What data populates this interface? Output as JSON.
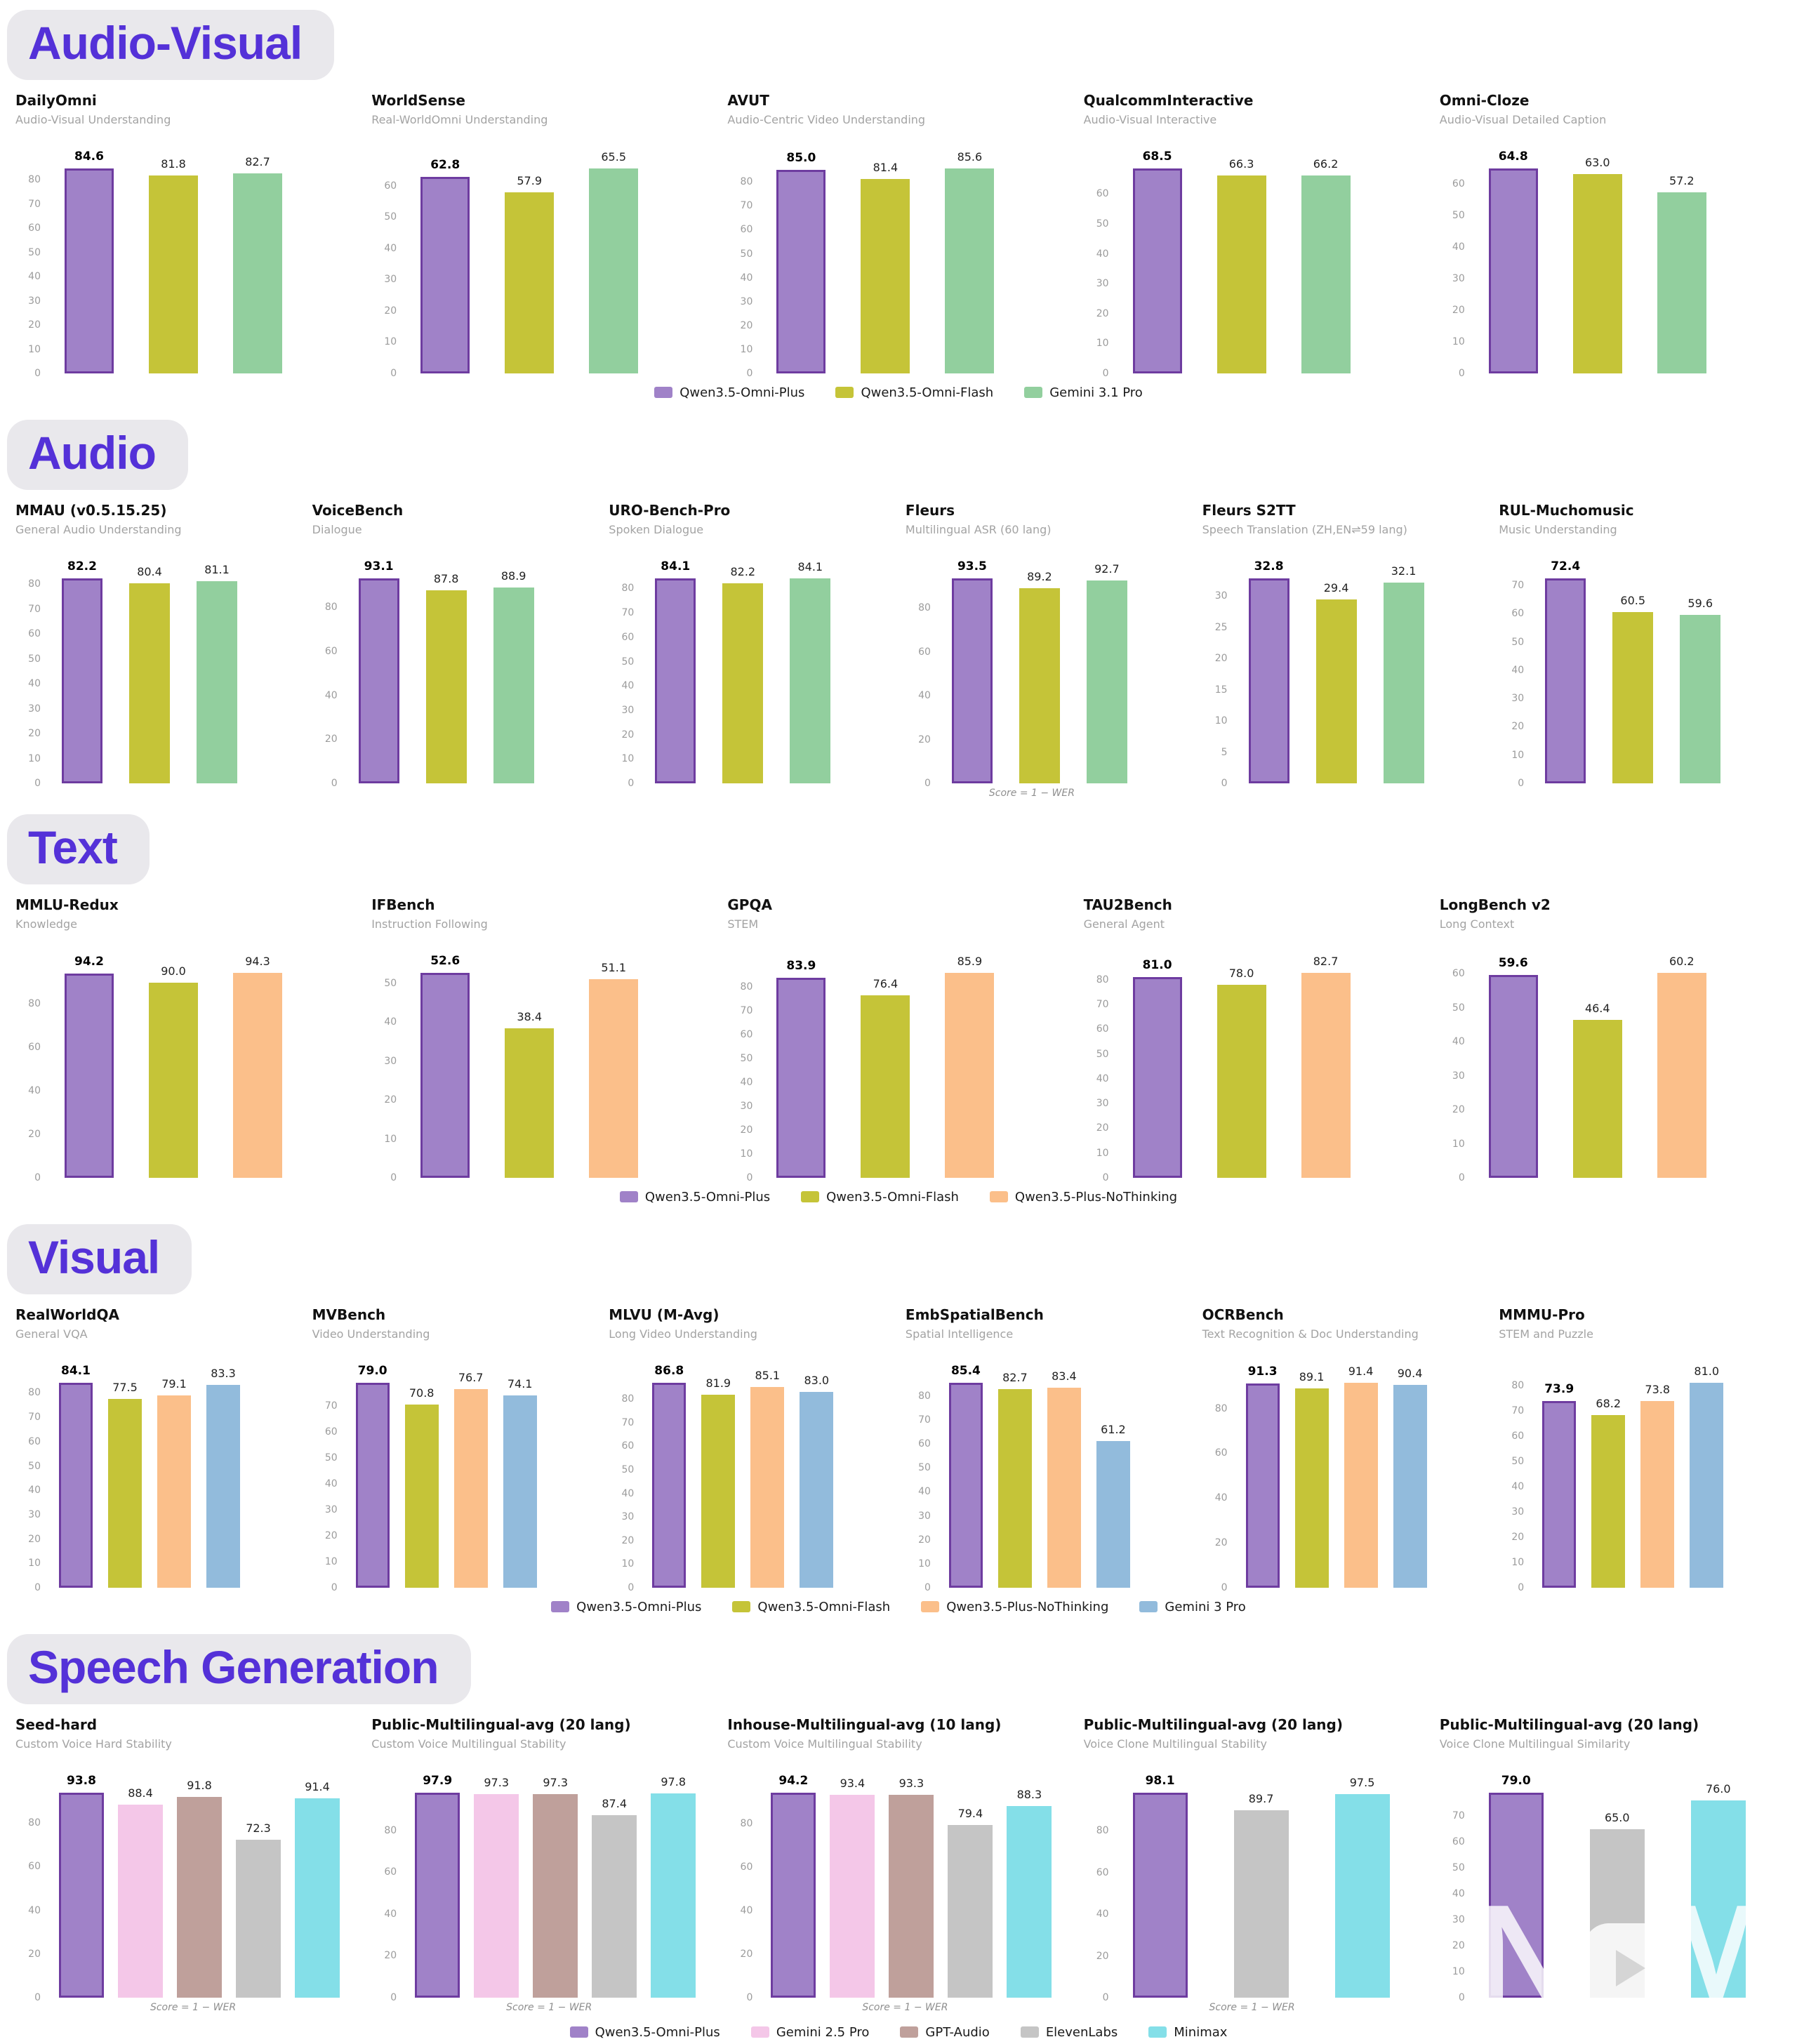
{
  "chart_data": {
    "type": "bar",
    "sections": [
      {
        "title": "Audio-Visual",
        "show_legend": true,
        "series": [
          {
            "name": "Qwen3.5-Omni-Plus",
            "color": "#a082c8",
            "border": "#6e3ca0"
          },
          {
            "name": "Qwen3.5-Omni-Flash",
            "color": "#c5c438"
          },
          {
            "name": "Gemini 3.1 Pro",
            "color": "#92cf9e"
          }
        ],
        "charts": [
          {
            "title": "DailyOmni",
            "subtitle": "Audio-Visual Understanding",
            "tick_max": 80,
            "tick_step": 10,
            "values": [
              "84.6",
              "81.8",
              "82.7"
            ]
          },
          {
            "title": "WorldSense",
            "subtitle": "Real-WorldOmni Understanding",
            "tick_max": 60,
            "tick_step": 10,
            "values": [
              "62.8",
              "57.9",
              "65.5"
            ]
          },
          {
            "title": "AVUT",
            "subtitle": "Audio-Centric Video Understanding",
            "tick_max": 80,
            "tick_step": 10,
            "values": [
              "85.0",
              "81.4",
              "85.6"
            ]
          },
          {
            "title": "QualcommInteractive",
            "subtitle": "Audio-Visual Interactive",
            "tick_max": 60,
            "tick_step": 10,
            "values": [
              "68.5",
              "66.3",
              "66.2"
            ]
          },
          {
            "title": "Omni-Cloze",
            "subtitle": "Audio-Visual Detailed Caption",
            "tick_max": 60,
            "tick_step": 10,
            "values": [
              "64.8",
              "63.0",
              "57.2"
            ]
          }
        ]
      },
      {
        "title": "Audio",
        "show_legend": false,
        "series": [
          {
            "name": "Qwen3.5-Omni-Plus",
            "color": "#a082c8",
            "border": "#6e3ca0"
          },
          {
            "name": "Qwen3.5-Omni-Flash",
            "color": "#c5c438"
          },
          {
            "name": "Gemini 3.1 Pro",
            "color": "#92cf9e"
          }
        ],
        "charts": [
          {
            "title": "MMAU (v0.5.15.25)",
            "subtitle": "General Audio Understanding",
            "tick_max": 80,
            "tick_step": 10,
            "values": [
              "82.2",
              "80.4",
              "81.1"
            ]
          },
          {
            "title": "VoiceBench",
            "subtitle": "Dialogue",
            "tick_max": 80,
            "tick_step": 20,
            "values": [
              "93.1",
              "87.8",
              "88.9"
            ]
          },
          {
            "title": "URO-Bench-Pro",
            "subtitle": "Spoken Dialogue",
            "tick_max": 80,
            "tick_step": 10,
            "values": [
              "84.1",
              "82.2",
              "84.1"
            ]
          },
          {
            "title": "Fleurs",
            "subtitle": "Multilingual ASR (60 lang)",
            "tick_max": 80,
            "tick_step": 20,
            "values": [
              "93.5",
              "89.2",
              "92.7"
            ],
            "score_note": "Score = 1 − WER"
          },
          {
            "title": "Fleurs S2TT",
            "subtitle": "Speech Translation (ZH,EN⇌59 lang)",
            "tick_max": 30,
            "tick_step": 5,
            "values": [
              "32.8",
              "29.4",
              "32.1"
            ]
          },
          {
            "title": "RUL-Muchomusic",
            "subtitle": "Music Understanding",
            "tick_max": 70,
            "tick_step": 10,
            "values": [
              "72.4",
              "60.5",
              "59.6"
            ]
          }
        ]
      },
      {
        "title": "Text",
        "show_legend": true,
        "series": [
          {
            "name": "Qwen3.5-Omni-Plus",
            "color": "#a082c8",
            "border": "#6e3ca0"
          },
          {
            "name": "Qwen3.5-Omni-Flash",
            "color": "#c5c438"
          },
          {
            "name": "Qwen3.5-Plus-NoThinking",
            "color": "#fbbf8a"
          }
        ],
        "charts": [
          {
            "title": "MMLU-Redux",
            "subtitle": "Knowledge",
            "tick_max": 80,
            "tick_step": 20,
            "values": [
              "94.2",
              "90.0",
              "94.3"
            ]
          },
          {
            "title": "IFBench",
            "subtitle": "Instruction Following",
            "tick_max": 50,
            "tick_step": 10,
            "values": [
              "52.6",
              "38.4",
              "51.1"
            ]
          },
          {
            "title": "GPQA",
            "subtitle": "STEM",
            "tick_max": 80,
            "tick_step": 10,
            "values": [
              "83.9",
              "76.4",
              "85.9"
            ]
          },
          {
            "title": "TAU2Bench",
            "subtitle": "General Agent",
            "tick_max": 80,
            "tick_step": 10,
            "values": [
              "81.0",
              "78.0",
              "82.7"
            ]
          },
          {
            "title": "LongBench v2",
            "subtitle": "Long Context",
            "tick_max": 60,
            "tick_step": 10,
            "values": [
              "59.6",
              "46.4",
              "60.2"
            ]
          }
        ]
      },
      {
        "title": "Visual",
        "show_legend": true,
        "series": [
          {
            "name": "Qwen3.5-Omni-Plus",
            "color": "#a082c8",
            "border": "#6e3ca0"
          },
          {
            "name": "Qwen3.5-Omni-Flash",
            "color": "#c5c438"
          },
          {
            "name": "Qwen3.5-Plus-NoThinking",
            "color": "#fbbf8a"
          },
          {
            "name": "Gemini 3 Pro",
            "color": "#92bbdc"
          }
        ],
        "charts": [
          {
            "title": "RealWorldQA",
            "subtitle": "General VQA",
            "tick_max": 80,
            "tick_step": 10,
            "values": [
              "84.1",
              "77.5",
              "79.1",
              "83.3"
            ]
          },
          {
            "title": "MVBench",
            "subtitle": "Video Understanding",
            "tick_max": 70,
            "tick_step": 10,
            "values": [
              "79.0",
              "70.8",
              "76.7",
              "74.1"
            ]
          },
          {
            "title": "MLVU (M-Avg)",
            "subtitle": "Long Video Understanding",
            "tick_max": 80,
            "tick_step": 10,
            "values": [
              "86.8",
              "81.9",
              "85.1",
              "83.0"
            ]
          },
          {
            "title": "EmbSpatialBench",
            "subtitle": "Spatial Intelligence",
            "tick_max": 80,
            "tick_step": 10,
            "values": [
              "85.4",
              "82.7",
              "83.4",
              "61.2"
            ]
          },
          {
            "title": "OCRBench",
            "subtitle": "Text Recognition & Doc Understanding",
            "tick_max": 80,
            "tick_step": 20,
            "values": [
              "91.3",
              "89.1",
              "91.4",
              "90.4"
            ]
          },
          {
            "title": "MMMU-Pro",
            "subtitle": "STEM and Puzzle",
            "tick_max": 80,
            "tick_step": 10,
            "values": [
              "73.9",
              "68.2",
              "73.8",
              "81.0"
            ]
          }
        ]
      },
      {
        "title": "Speech Generation",
        "show_legend": true,
        "series": [
          {
            "name": "Qwen3.5-Omni-Plus",
            "color": "#a082c8",
            "border": "#6e3ca0"
          },
          {
            "name": "Gemini 2.5 Pro",
            "color": "#f4c7e8"
          },
          {
            "name": "GPT-Audio",
            "color": "#bfa09b"
          },
          {
            "name": "ElevenLabs",
            "color": "#c5c5c5"
          },
          {
            "name": "Minimax",
            "color": "#84dfe8"
          }
        ],
        "charts": [
          {
            "title": "Seed-hard",
            "subtitle": "Custom Voice Hard Stability",
            "tick_max": 80,
            "tick_step": 20,
            "values": [
              "93.8",
              "88.4",
              "91.8",
              "72.3",
              "91.4"
            ],
            "score_note": "Score = 1 − WER"
          },
          {
            "title": "Public-Multilingual-avg (20 lang)",
            "subtitle": "Custom Voice Multilingual Stability",
            "tick_max": 80,
            "tick_step": 20,
            "values": [
              "97.9",
              "97.3",
              "97.3",
              "87.4",
              "97.8"
            ],
            "score_note": "Score = 1 − WER"
          },
          {
            "title": "Inhouse-Multilingual-avg (10 lang)",
            "subtitle": "Custom Voice Multilingual Stability",
            "tick_max": 80,
            "tick_step": 20,
            "values": [
              "94.2",
              "93.4",
              "93.3",
              "79.4",
              "88.3"
            ],
            "score_note": "Score = 1 − WER"
          },
          {
            "title": "Public-Multilingual-avg (20 lang)",
            "subtitle": "Voice Clone Multilingual Stability",
            "tick_max": 80,
            "tick_step": 20,
            "values": [
              "98.1",
              "89.7",
              "97.5"
            ],
            "series_idx": [
              0,
              3,
              4
            ],
            "score_note": "Score = 1 − WER"
          },
          {
            "title": "Public-Multilingual-avg (20 lang)",
            "subtitle": "Voice Clone Multilingual Similarity",
            "tick_max": 70,
            "tick_step": 10,
            "values": [
              "79.0",
              "65.0",
              "76.0"
            ],
            "series_idx": [
              0,
              3,
              4
            ]
          }
        ]
      }
    ]
  }
}
